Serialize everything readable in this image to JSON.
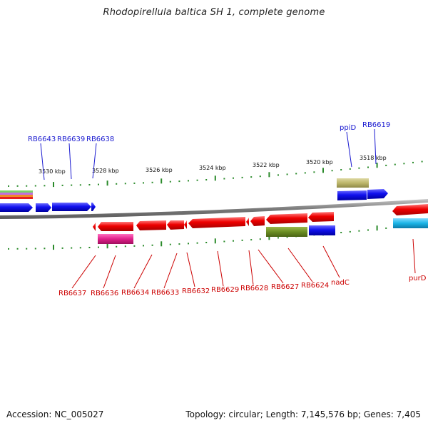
{
  "title": "Rhodopirellula baltica SH 1, complete genome",
  "footer": {
    "accession": "Accession: NC_005027",
    "summary": "Topology: circular; Length: 7,145,576 bp; Genes: 7,405"
  },
  "colors": {
    "backbone": "#8a8a8a",
    "tick": "#2a8a2a",
    "top_label": "#1a1ad0",
    "bottom_label": "#cc0000",
    "forward_gene": "#1a1ae6",
    "reverse_gene": "#e60000",
    "olive": "#6b8e23",
    "khaki": "#bdb76b",
    "magenta": "#e0208a",
    "cyan": "#1ab4e6"
  },
  "scale_labels": [
    "3530 kbp",
    "3528 kbp",
    "3526 kbp",
    "3524 kbp",
    "3522 kbp",
    "3520 kbp",
    "3518 kbp"
  ],
  "top_labels": [
    "RB6643",
    "RB6639",
    "RB6638",
    "ppiD",
    "RB6619"
  ],
  "bottom_labels": [
    "RB6637",
    "RB6636",
    "RB6634",
    "RB6633",
    "RB6632",
    "RB6629",
    "RB6628",
    "RB6627",
    "RB6624",
    "nadC",
    "purD"
  ]
}
